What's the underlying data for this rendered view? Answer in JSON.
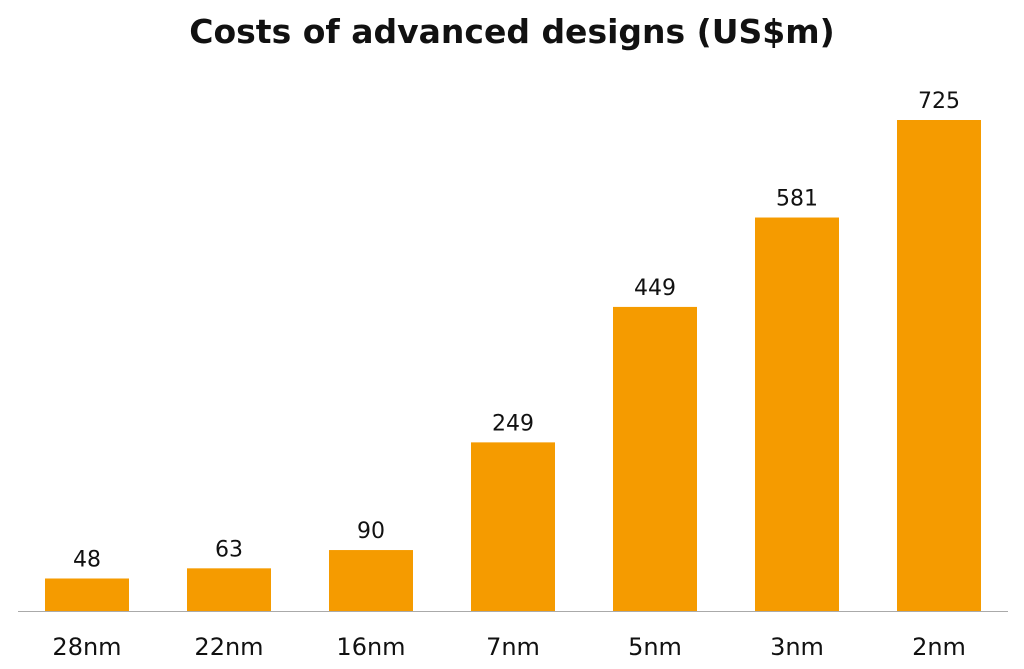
{
  "chart_data": {
    "type": "bar",
    "title": "Costs of advanced designs (US$m)",
    "xlabel": "",
    "ylabel": "",
    "categories": [
      "28nm",
      "22nm",
      "16nm",
      "7nm",
      "5nm",
      "3nm",
      "2nm"
    ],
    "values": [
      48,
      63,
      90,
      249,
      449,
      581,
      725
    ],
    "data_labels": [
      "48",
      "63",
      "90",
      "249",
      "449",
      "581",
      "725"
    ],
    "ylim": [
      0,
      725
    ],
    "grid": false,
    "legend": "none",
    "bar_color": "#F59B00",
    "axis_color": "#AAAAAA"
  }
}
